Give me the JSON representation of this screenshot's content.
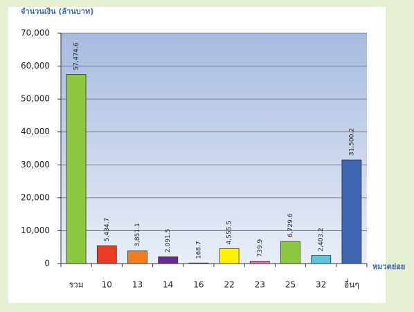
{
  "chart_data": {
    "type": "bar",
    "y_label": "จำนวนเงิน (ล้านบาท)",
    "x_label": "หมวดย่อย",
    "categories": [
      "รวม",
      "10",
      "13",
      "14",
      "16",
      "22",
      "23",
      "25",
      "32",
      "อื่นๆ"
    ],
    "values": [
      57474.6,
      5434.7,
      3851.1,
      2091.5,
      168.7,
      4555.5,
      739.9,
      6729.6,
      2403.2,
      31500.2
    ],
    "value_labels": [
      "57,474.6",
      "5,434.7",
      "3,851.1",
      "2,091.5",
      "168.7",
      "4,555.5",
      "739.9",
      "6,729.6",
      "2,403.2",
      "31,500.2"
    ],
    "colors": [
      "#8dc63f",
      "#ee3b24",
      "#f47b20",
      "#6a2c91",
      "#9a9a9a",
      "#fff200",
      "#e073b0",
      "#8dc63f",
      "#5bc5de",
      "#3f64b0"
    ],
    "ylim": [
      0,
      70000
    ],
    "yticks": [
      0,
      {
        "value": 10000,
        "label": "10,000"
      },
      {
        "value": 20000,
        "label": "20,000"
      },
      {
        "value": 30000,
        "label": "30,000"
      },
      {
        "value": 40000,
        "label": "40,000"
      },
      {
        "value": 50000,
        "label": "50,000"
      },
      {
        "value": 60000,
        "label": "60,000"
      },
      {
        "value": 70000,
        "label": "70,000"
      }
    ],
    "grid": true
  }
}
